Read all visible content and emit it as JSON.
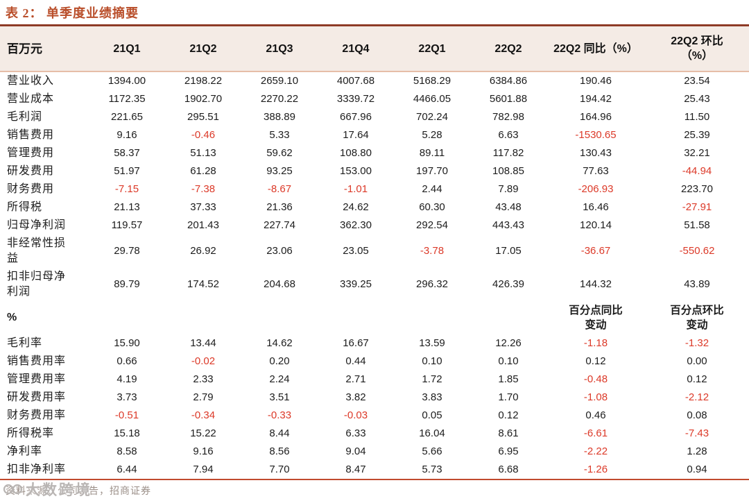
{
  "title": "表 2： 单季度业绩摘要",
  "colors": {
    "title_red": "#b94e2a",
    "title_rule": "#8e3b26",
    "header_bg": "#f4ebe5",
    "header_rule": "#e6bda7",
    "negative_red": "#dc3928",
    "text_dark": "#1c1c1c",
    "bottom_rule": "#c14a2e",
    "footer_gray": "#9b8f88",
    "watermark_gray": "#b9b5b3"
  },
  "table": {
    "columns": {
      "unit": "百万元",
      "c1": "21Q1",
      "c2": "21Q2",
      "c3": "21Q3",
      "c4": "21Q4",
      "c5": "22Q1",
      "c6": "22Q2",
      "yoy": "22Q2 同比（%）",
      "qoq1": "22Q2 环比",
      "qoq2": "（%）"
    },
    "rows": [
      {
        "label": "营业收入",
        "values": [
          "1394.00",
          "2198.22",
          "2659.10",
          "4007.68",
          "5168.29",
          "6384.86",
          "190.46",
          "23.54"
        ]
      },
      {
        "label": "营业成本",
        "values": [
          "1172.35",
          "1902.70",
          "2270.22",
          "3339.72",
          "4466.05",
          "5601.88",
          "194.42",
          "25.43"
        ]
      },
      {
        "label": "毛利润",
        "values": [
          "221.65",
          "295.51",
          "388.89",
          "667.96",
          "702.24",
          "782.98",
          "164.96",
          "11.50"
        ]
      },
      {
        "label": "销售费用",
        "values": [
          "9.16",
          "-0.46",
          "5.33",
          "17.64",
          "5.28",
          "6.63",
          "-1530.65",
          "25.39"
        ]
      },
      {
        "label": "管理费用",
        "values": [
          "58.37",
          "51.13",
          "59.62",
          "108.80",
          "89.11",
          "117.82",
          "130.43",
          "32.21"
        ]
      },
      {
        "label": "研发费用",
        "values": [
          "51.97",
          "61.28",
          "93.25",
          "153.00",
          "197.70",
          "108.85",
          "77.63",
          "-44.94"
        ]
      },
      {
        "label": "财务费用",
        "values": [
          "-7.15",
          "-7.38",
          "-8.67",
          "-1.01",
          "2.44",
          "7.89",
          "-206.93",
          "223.70"
        ]
      },
      {
        "label": "所得税",
        "values": [
          "21.13",
          "37.33",
          "21.36",
          "24.62",
          "60.30",
          "43.48",
          "16.46",
          "-27.91"
        ]
      },
      {
        "label": "归母净利润",
        "values": [
          "119.57",
          "201.43",
          "227.74",
          "362.30",
          "292.54",
          "443.43",
          "120.14",
          "51.58"
        ]
      },
      {
        "label": "非经常性损\n益",
        "values": [
          "29.78",
          "26.92",
          "23.06",
          "23.05",
          "-3.78",
          "17.05",
          "-36.67",
          "-550.62"
        ]
      },
      {
        "label": "扣非归母净\n利润",
        "values": [
          "89.79",
          "174.52",
          "204.68",
          "339.25",
          "296.32",
          "426.39",
          "144.32",
          "43.89"
        ]
      },
      {
        "type": "section",
        "label": "%",
        "yoy_line1": "百分点同比",
        "yoy_line2": "变动",
        "qoq_line1": "百分点环比",
        "qoq_line2": "变动"
      },
      {
        "label": "毛利率",
        "values": [
          "15.90",
          "13.44",
          "14.62",
          "16.67",
          "13.59",
          "12.26",
          "-1.18",
          "-1.32"
        ]
      },
      {
        "label": "销售费用率",
        "values": [
          "0.66",
          "-0.02",
          "0.20",
          "0.44",
          "0.10",
          "0.10",
          "0.12",
          "0.00"
        ]
      },
      {
        "label": "管理费用率",
        "values": [
          "4.19",
          "2.33",
          "2.24",
          "2.71",
          "1.72",
          "1.85",
          "-0.48",
          "0.12"
        ]
      },
      {
        "label": "研发费用率",
        "values": [
          "3.73",
          "2.79",
          "3.51",
          "3.82",
          "3.83",
          "1.70",
          "-1.08",
          "-2.12"
        ]
      },
      {
        "label": "财务费用率",
        "values": [
          "-0.51",
          "-0.34",
          "-0.33",
          "-0.03",
          "0.05",
          "0.12",
          "0.46",
          "0.08"
        ]
      },
      {
        "label": "所得税率",
        "values": [
          "15.18",
          "15.22",
          "8.44",
          "6.33",
          "16.04",
          "8.61",
          "-6.61",
          "-7.43"
        ]
      },
      {
        "label": "净利率",
        "values": [
          "8.58",
          "9.16",
          "8.56",
          "9.04",
          "5.66",
          "6.95",
          "-2.22",
          "1.28"
        ]
      },
      {
        "label": "扣非净利率",
        "values": [
          "6.44",
          "7.94",
          "7.70",
          "8.47",
          "5.73",
          "6.68",
          "-1.26",
          "0.94"
        ]
      }
    ]
  },
  "footer": {
    "source": "资料来源：公司公告，招商证券",
    "watermark": "大数跨境"
  }
}
